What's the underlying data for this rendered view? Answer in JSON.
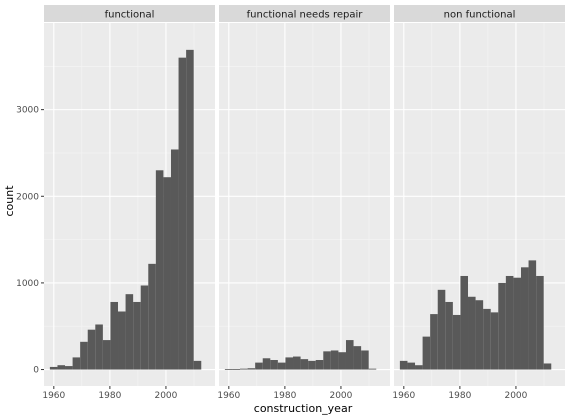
{
  "chart_data": {
    "type": "bar",
    "xlabel": "construction_year",
    "ylabel": "count",
    "ylim": [
      -190,
      4000
    ],
    "xlim": [
      1956.5,
      2017.5
    ],
    "x_ticks": [
      1960,
      1980,
      2000
    ],
    "y_ticks": [
      0,
      1000,
      2000,
      3000
    ],
    "y_tick_labels": [
      "0",
      "1000",
      "2000",
      "3000"
    ],
    "x_tick_labels": [
      "1960",
      "1980",
      "2000"
    ],
    "bin_width": 2.7,
    "bin_starts": [
      1958.6,
      1961.3,
      1964.0,
      1966.7,
      1969.4,
      1972.1,
      1974.8,
      1977.5,
      1980.2,
      1982.9,
      1985.6,
      1988.3,
      1991.0,
      1993.7,
      1996.4,
      1999.1,
      2001.8,
      2004.5,
      2007.2,
      2009.9,
      2012.6
    ],
    "series": [
      {
        "name": "functional",
        "values": [
          30,
          50,
          40,
          140,
          320,
          460,
          520,
          340,
          780,
          670,
          870,
          780,
          970,
          1220,
          2300,
          2220,
          2540,
          3600,
          3690,
          100,
          0
        ]
      },
      {
        "name": "functional needs repair",
        "values": [
          5,
          5,
          10,
          15,
          80,
          130,
          110,
          80,
          140,
          150,
          120,
          100,
          110,
          210,
          220,
          200,
          340,
          270,
          220,
          10,
          0
        ]
      },
      {
        "name": "non functional",
        "values": [
          100,
          80,
          50,
          380,
          640,
          920,
          780,
          630,
          1080,
          840,
          800,
          700,
          660,
          1000,
          1080,
          1060,
          1180,
          1260,
          1080,
          70,
          0
        ]
      }
    ]
  },
  "colors": {
    "bar": "#595959",
    "panel_bg": "#ebebeb",
    "strip_bg": "#d9d9d9",
    "grid_major": "#ffffff",
    "grid_minor": "#f5f5f5",
    "tick": "#333333"
  }
}
